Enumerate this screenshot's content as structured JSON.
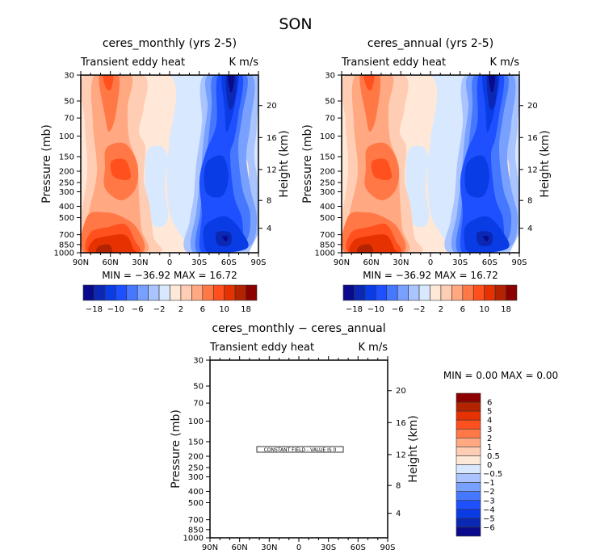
{
  "title": "SON",
  "chart_data": [
    {
      "type": "contour",
      "title": "ceres_monthly (yrs 2-5)",
      "left_string": "Transient eddy heat",
      "right_string": "K m/s",
      "xticks": [
        "90N",
        "60N",
        "30N",
        "0",
        "30S",
        "60S",
        "90S"
      ],
      "ylabel": "Pressure (mb)",
      "yticks": [
        "30",
        "50",
        "70",
        "100",
        "150",
        "200",
        "250",
        "300",
        "400",
        "500",
        "700",
        "850",
        "1000"
      ],
      "ylabel_right": "Height (km)",
      "yticks_right": [
        "4",
        "8",
        "12",
        "16",
        "20"
      ],
      "min_max": "MIN = −36.92   MAX =  16.72",
      "min": -36.92,
      "max": 16.72,
      "colorbar_labels": [
        "−18",
        "−10",
        "−6",
        "−2",
        "2",
        "6",
        "10",
        "18"
      ]
    },
    {
      "type": "contour",
      "title": "ceres_annual (yrs 2-5)",
      "left_string": "Transient eddy heat",
      "right_string": "K m/s",
      "xticks": [
        "90N",
        "60N",
        "30N",
        "0",
        "30S",
        "60S",
        "90S"
      ],
      "ylabel": "Pressure (mb)",
      "yticks": [
        "30",
        "50",
        "70",
        "100",
        "150",
        "200",
        "250",
        "300",
        "400",
        "500",
        "700",
        "850",
        "1000"
      ],
      "ylabel_right": "Height (km)",
      "yticks_right": [
        "4",
        "8",
        "12",
        "16",
        "20"
      ],
      "min_max": "MIN = −36.92   MAX =  16.72",
      "min": -36.92,
      "max": 16.72,
      "colorbar_labels": [
        "−18",
        "−10",
        "−6",
        "−2",
        "2",
        "6",
        "10",
        "18"
      ]
    },
    {
      "type": "contour",
      "title": "ceres_monthly − ceres_annual",
      "left_string": "Transient eddy heat",
      "right_string": "K m/s",
      "xticks": [
        "90N",
        "60N",
        "30N",
        "0",
        "30S",
        "60S",
        "90S"
      ],
      "ylabel": "Pressure (mb)",
      "yticks": [
        "30",
        "50",
        "70",
        "100",
        "150",
        "200",
        "250",
        "300",
        "400",
        "500",
        "700",
        "850",
        "1000"
      ],
      "ylabel_right": "Height (km)",
      "yticks_right": [
        "4",
        "8",
        "12",
        "16",
        "20"
      ],
      "min_max": "MIN =     0.00   MAX =     0.00",
      "min": 0.0,
      "max": 0.0,
      "note": "CONSTANT FIELD - VALUE IS 0",
      "colorbar_labels": [
        "6",
        "5",
        "4",
        "3",
        "2",
        "1",
        "0.5",
        "0",
        "−0.5",
        "−1",
        "−2",
        "−3",
        "−4",
        "−5",
        "−6"
      ]
    }
  ],
  "colors": {
    "levels16": [
      "#0a0a8c",
      "#0a28b4",
      "#0a3ce6",
      "#1e50ff",
      "#4678ff",
      "#78a0ff",
      "#aac4ff",
      "#d7e8ff",
      "#ffe8d7",
      "#ffcdb4",
      "#ffa882",
      "#ff7846",
      "#ff501e",
      "#e63200",
      "#b42300",
      "#8c0000"
    ]
  }
}
